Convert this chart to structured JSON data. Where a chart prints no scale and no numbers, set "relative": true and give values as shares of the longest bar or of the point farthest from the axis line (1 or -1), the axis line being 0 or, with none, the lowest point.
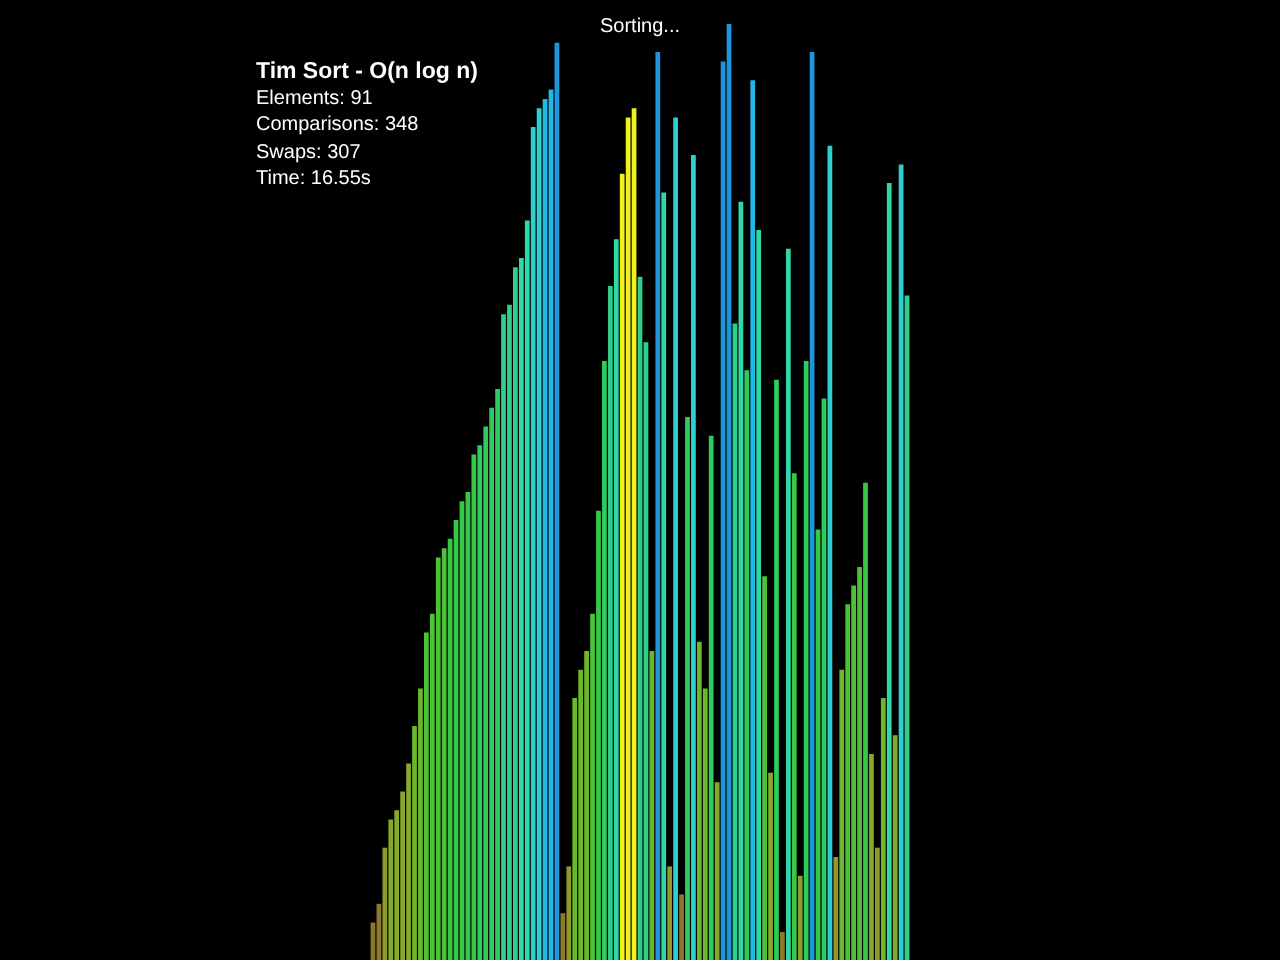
{
  "chart_data": {
    "type": "bar",
    "title": "Tim Sort - O(n log n)",
    "subtitle": "Sorting...",
    "annotations": [
      "Elements: 91",
      "Comparisons: 348",
      "Swaps: 307",
      "Time: 16.55s"
    ],
    "categories": [
      null,
      null,
      null,
      null,
      null,
      null,
      null,
      null,
      null,
      null,
      null,
      null,
      null,
      null,
      null,
      null,
      null,
      null,
      null,
      null,
      null,
      null,
      null,
      null,
      null,
      null,
      null,
      null,
      null,
      null,
      null,
      null,
      null,
      null,
      null,
      null,
      null,
      null,
      null,
      null,
      null,
      null,
      null,
      null,
      null,
      null,
      null,
      null,
      null,
      null,
      null,
      null,
      null,
      null,
      null,
      null,
      null,
      null,
      null,
      null,
      null,
      null,
      null,
      null,
      null,
      null,
      null,
      null,
      null,
      null,
      null,
      null,
      null,
      null,
      null,
      null,
      null,
      null,
      null,
      null,
      null,
      null,
      null,
      null,
      null,
      null,
      null,
      null,
      null,
      null,
      null
    ],
    "values": [
      0.04,
      0.06,
      0.12,
      0.15,
      0.16,
      0.18,
      0.21,
      0.25,
      0.29,
      0.35,
      0.37,
      0.43,
      0.44,
      0.45,
      0.47,
      0.49,
      0.5,
      0.54,
      0.55,
      0.57,
      0.59,
      0.61,
      0.69,
      0.7,
      0.74,
      0.75,
      0.79,
      0.89,
      0.91,
      0.92,
      0.93,
      0.98,
      0.05,
      0.1,
      0.28,
      0.31,
      0.33,
      0.37,
      0.48,
      0.64,
      0.72,
      0.77,
      0.84,
      0.9,
      0.91,
      0.73,
      0.66,
      0.33,
      0.97,
      0.82,
      0.1,
      0.9,
      0.07,
      0.58,
      0.86,
      0.34,
      0.29,
      0.56,
      0.19,
      0.96,
      1,
      0.68,
      0.81,
      0.63,
      0.94,
      0.78,
      0.41,
      0.2,
      0.62,
      0.03,
      0.76,
      0.52,
      0.09,
      0.64,
      0.97,
      0.46,
      0.6,
      0.87,
      0.11,
      0.31,
      0.38,
      0.4,
      0.42,
      0.51,
      0.22,
      0.12,
      0.28,
      0.83,
      0.24,
      0.85,
      0.71
    ],
    "colors": [
      "#8c7a2a",
      "#8c7a2a",
      "#8e9a2c",
      "#86a82c",
      "#86a82c",
      "#86a82c",
      "#86a82c",
      "#6cb82c",
      "#6cb82c",
      "#4cc236",
      "#4cc236",
      "#4cc236",
      "#4cc236",
      "#38c848",
      "#38c848",
      "#38c848",
      "#38c848",
      "#38c848",
      "#2ecc5c",
      "#2ecc5c",
      "#2ecc5c",
      "#2ecc5c",
      "#2dd08a",
      "#2dd08a",
      "#2dd08a",
      "#30d8a8",
      "#30d8a8",
      "#2cd0d0",
      "#2cd0d0",
      "#22b8e4",
      "#22b8e4",
      "#1e96dc",
      "#8c7a2a",
      "#8e9a2c",
      "#6cb82c",
      "#6cb82c",
      "#6cb82c",
      "#4cc236",
      "#38c848",
      "#2ecc5c",
      "#2dd08a",
      "#30d8a8",
      "#f0f020",
      "#f0f020",
      "#f0f020",
      "#2dd08a",
      "#2dd08a",
      "#6cb82c",
      "#1e96dc",
      "#30d8a8",
      "#8e9a2c",
      "#2cd0d0",
      "#8c7a2a",
      "#2ecc5c",
      "#2cd0d0",
      "#6cb82c",
      "#6cb82c",
      "#2ecc5c",
      "#86a82c",
      "#1e96dc",
      "#1e96dc",
      "#2dd08a",
      "#30d8a8",
      "#2ecc5c",
      "#22b8e4",
      "#30d8a8",
      "#4cc236",
      "#86a82c",
      "#2ecc5c",
      "#8c7a2a",
      "#30d8a8",
      "#38c848",
      "#8e9a2c",
      "#2ecc5c",
      "#1e96dc",
      "#38c848",
      "#2ecc5c",
      "#2cd0d0",
      "#8e9a2c",
      "#6cb82c",
      "#4cc236",
      "#4cc236",
      "#4cc236",
      "#38c848",
      "#86a82c",
      "#8e9a2c",
      "#6cb82c",
      "#30d8a8",
      "#86a82c",
      "#2cd0d0",
      "#2dd08a"
    ],
    "relative": true,
    "tick_labels": false
  }
}
